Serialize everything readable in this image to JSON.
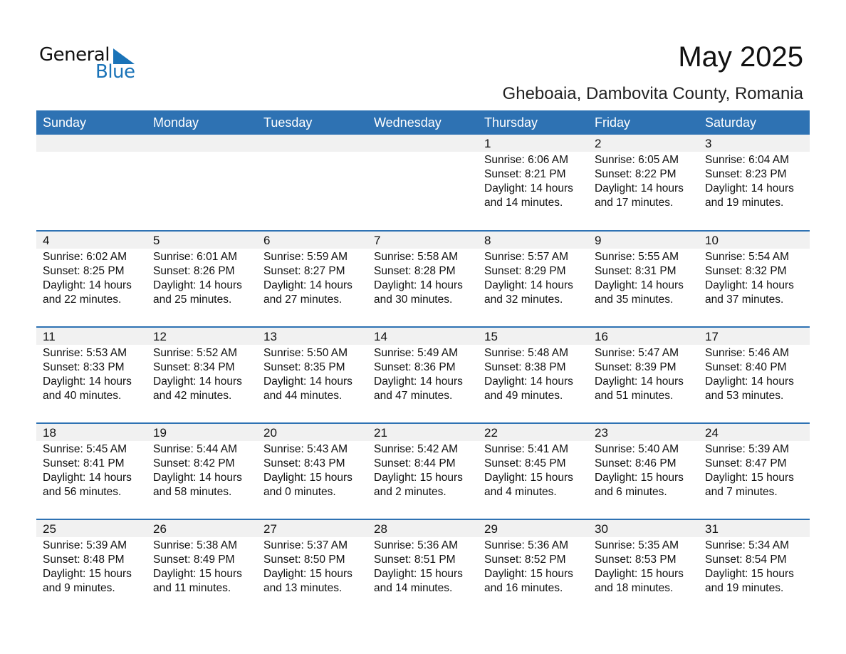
{
  "logo": {
    "line1": "General",
    "line2": "Blue",
    "accent": "#1a73b8"
  },
  "header": {
    "title": "May 2025",
    "location": "Gheboaia, Dambovita County, Romania"
  },
  "colors": {
    "header_bg": "#2e72b3",
    "date_strip": "#f1f1f1"
  },
  "days": [
    "Sunday",
    "Monday",
    "Tuesday",
    "Wednesday",
    "Thursday",
    "Friday",
    "Saturday"
  ],
  "weeks": [
    [
      null,
      null,
      null,
      null,
      {
        "date": "1",
        "sunrise": "Sunrise: 6:06 AM",
        "sunset": "Sunset: 8:21 PM",
        "daylight": "Daylight: 14 hours",
        "minutes": "and 14 minutes."
      },
      {
        "date": "2",
        "sunrise": "Sunrise: 6:05 AM",
        "sunset": "Sunset: 8:22 PM",
        "daylight": "Daylight: 14 hours",
        "minutes": "and 17 minutes."
      },
      {
        "date": "3",
        "sunrise": "Sunrise: 6:04 AM",
        "sunset": "Sunset: 8:23 PM",
        "daylight": "Daylight: 14 hours",
        "minutes": "and 19 minutes."
      }
    ],
    [
      {
        "date": "4",
        "sunrise": "Sunrise: 6:02 AM",
        "sunset": "Sunset: 8:25 PM",
        "daylight": "Daylight: 14 hours",
        "minutes": "and 22 minutes."
      },
      {
        "date": "5",
        "sunrise": "Sunrise: 6:01 AM",
        "sunset": "Sunset: 8:26 PM",
        "daylight": "Daylight: 14 hours",
        "minutes": "and 25 minutes."
      },
      {
        "date": "6",
        "sunrise": "Sunrise: 5:59 AM",
        "sunset": "Sunset: 8:27 PM",
        "daylight": "Daylight: 14 hours",
        "minutes": "and 27 minutes."
      },
      {
        "date": "7",
        "sunrise": "Sunrise: 5:58 AM",
        "sunset": "Sunset: 8:28 PM",
        "daylight": "Daylight: 14 hours",
        "minutes": "and 30 minutes."
      },
      {
        "date": "8",
        "sunrise": "Sunrise: 5:57 AM",
        "sunset": "Sunset: 8:29 PM",
        "daylight": "Daylight: 14 hours",
        "minutes": "and 32 minutes."
      },
      {
        "date": "9",
        "sunrise": "Sunrise: 5:55 AM",
        "sunset": "Sunset: 8:31 PM",
        "daylight": "Daylight: 14 hours",
        "minutes": "and 35 minutes."
      },
      {
        "date": "10",
        "sunrise": "Sunrise: 5:54 AM",
        "sunset": "Sunset: 8:32 PM",
        "daylight": "Daylight: 14 hours",
        "minutes": "and 37 minutes."
      }
    ],
    [
      {
        "date": "11",
        "sunrise": "Sunrise: 5:53 AM",
        "sunset": "Sunset: 8:33 PM",
        "daylight": "Daylight: 14 hours",
        "minutes": "and 40 minutes."
      },
      {
        "date": "12",
        "sunrise": "Sunrise: 5:52 AM",
        "sunset": "Sunset: 8:34 PM",
        "daylight": "Daylight: 14 hours",
        "minutes": "and 42 minutes."
      },
      {
        "date": "13",
        "sunrise": "Sunrise: 5:50 AM",
        "sunset": "Sunset: 8:35 PM",
        "daylight": "Daylight: 14 hours",
        "minutes": "and 44 minutes."
      },
      {
        "date": "14",
        "sunrise": "Sunrise: 5:49 AM",
        "sunset": "Sunset: 8:36 PM",
        "daylight": "Daylight: 14 hours",
        "minutes": "and 47 minutes."
      },
      {
        "date": "15",
        "sunrise": "Sunrise: 5:48 AM",
        "sunset": "Sunset: 8:38 PM",
        "daylight": "Daylight: 14 hours",
        "minutes": "and 49 minutes."
      },
      {
        "date": "16",
        "sunrise": "Sunrise: 5:47 AM",
        "sunset": "Sunset: 8:39 PM",
        "daylight": "Daylight: 14 hours",
        "minutes": "and 51 minutes."
      },
      {
        "date": "17",
        "sunrise": "Sunrise: 5:46 AM",
        "sunset": "Sunset: 8:40 PM",
        "daylight": "Daylight: 14 hours",
        "minutes": "and 53 minutes."
      }
    ],
    [
      {
        "date": "18",
        "sunrise": "Sunrise: 5:45 AM",
        "sunset": "Sunset: 8:41 PM",
        "daylight": "Daylight: 14 hours",
        "minutes": "and 56 minutes."
      },
      {
        "date": "19",
        "sunrise": "Sunrise: 5:44 AM",
        "sunset": "Sunset: 8:42 PM",
        "daylight": "Daylight: 14 hours",
        "minutes": "and 58 minutes."
      },
      {
        "date": "20",
        "sunrise": "Sunrise: 5:43 AM",
        "sunset": "Sunset: 8:43 PM",
        "daylight": "Daylight: 15 hours",
        "minutes": "and 0 minutes."
      },
      {
        "date": "21",
        "sunrise": "Sunrise: 5:42 AM",
        "sunset": "Sunset: 8:44 PM",
        "daylight": "Daylight: 15 hours",
        "minutes": "and 2 minutes."
      },
      {
        "date": "22",
        "sunrise": "Sunrise: 5:41 AM",
        "sunset": "Sunset: 8:45 PM",
        "daylight": "Daylight: 15 hours",
        "minutes": "and 4 minutes."
      },
      {
        "date": "23",
        "sunrise": "Sunrise: 5:40 AM",
        "sunset": "Sunset: 8:46 PM",
        "daylight": "Daylight: 15 hours",
        "minutes": "and 6 minutes."
      },
      {
        "date": "24",
        "sunrise": "Sunrise: 5:39 AM",
        "sunset": "Sunset: 8:47 PM",
        "daylight": "Daylight: 15 hours",
        "minutes": "and 7 minutes."
      }
    ],
    [
      {
        "date": "25",
        "sunrise": "Sunrise: 5:39 AM",
        "sunset": "Sunset: 8:48 PM",
        "daylight": "Daylight: 15 hours",
        "minutes": "and 9 minutes."
      },
      {
        "date": "26",
        "sunrise": "Sunrise: 5:38 AM",
        "sunset": "Sunset: 8:49 PM",
        "daylight": "Daylight: 15 hours",
        "minutes": "and 11 minutes."
      },
      {
        "date": "27",
        "sunrise": "Sunrise: 5:37 AM",
        "sunset": "Sunset: 8:50 PM",
        "daylight": "Daylight: 15 hours",
        "minutes": "and 13 minutes."
      },
      {
        "date": "28",
        "sunrise": "Sunrise: 5:36 AM",
        "sunset": "Sunset: 8:51 PM",
        "daylight": "Daylight: 15 hours",
        "minutes": "and 14 minutes."
      },
      {
        "date": "29",
        "sunrise": "Sunrise: 5:36 AM",
        "sunset": "Sunset: 8:52 PM",
        "daylight": "Daylight: 15 hours",
        "minutes": "and 16 minutes."
      },
      {
        "date": "30",
        "sunrise": "Sunrise: 5:35 AM",
        "sunset": "Sunset: 8:53 PM",
        "daylight": "Daylight: 15 hours",
        "minutes": "and 18 minutes."
      },
      {
        "date": "31",
        "sunrise": "Sunrise: 5:34 AM",
        "sunset": "Sunset: 8:54 PM",
        "daylight": "Daylight: 15 hours",
        "minutes": "and 19 minutes."
      }
    ]
  ]
}
